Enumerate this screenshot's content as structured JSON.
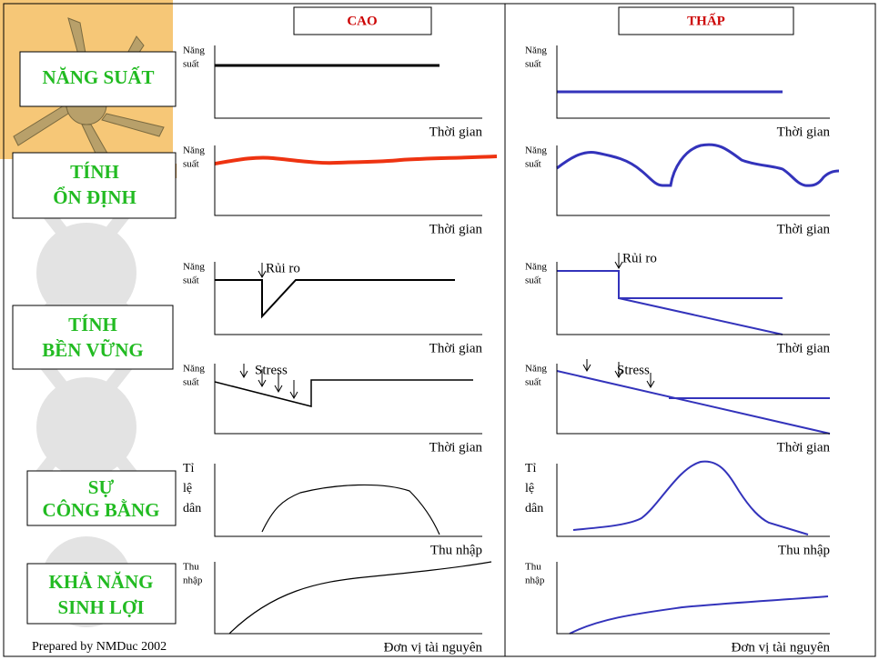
{
  "columns": [
    "CAO",
    "THẤP"
  ],
  "criteria": [
    [
      "NĂNG SUẤT"
    ],
    [
      "TÍNH",
      "ỔN ĐỊNH"
    ],
    [
      "TÍNH",
      "BỀN VỮNG"
    ],
    [
      "SỰ",
      "CÔNG BẰNG"
    ],
    [
      "KHẢ NĂNG",
      "SINH LỢI"
    ]
  ],
  "charts": [
    {
      "cao": {
        "y_label": [
          "Năng",
          "suất"
        ],
        "x_label": "Thời gian"
      },
      "thap": {
        "y_label": [
          "Năng",
          "suất"
        ],
        "x_label": "Thời gian"
      }
    },
    {
      "cao": {
        "y_label": [
          "Năng",
          "suất"
        ],
        "x_label": "Thời gian"
      },
      "thap": {
        "y_label": [
          "Năng",
          "suất"
        ],
        "x_label": "Thời gian"
      }
    },
    {
      "cao": {
        "y_label": [
          "Năng",
          "suất"
        ],
        "x_label": "Thời gian",
        "annotation": "Rủi ro"
      },
      "thap": {
        "y_label": [
          "Năng",
          "suất"
        ],
        "x_label": "Thời gian",
        "annotation": "Rủi ro"
      }
    },
    {
      "cao": {
        "y_label": [
          "Năng",
          "suất"
        ],
        "x_label": "Thời gian",
        "annotation": "Stress"
      },
      "thap": {
        "y_label": [
          "Năng",
          "suất"
        ],
        "x_label": "Thời gian",
        "annotation": "Stress"
      }
    },
    {
      "cao": {
        "y_label": [
          "Tỉ",
          "lệ",
          "dân"
        ],
        "x_label": "Thu nhập"
      },
      "thap": {
        "y_label": [
          "Tỉ",
          "lệ",
          "dân"
        ],
        "x_label": "Thu nhập"
      }
    },
    {
      "cao": {
        "y_label": [
          "Thu",
          "nhập"
        ],
        "x_label": "Đơn vị tài nguyên"
      },
      "thap": {
        "y_label": [
          "Thu",
          "nhập"
        ],
        "x_label": "Đơn vị tài nguyên"
      }
    }
  ],
  "footer": "Prepared by NMDuc 2002"
}
